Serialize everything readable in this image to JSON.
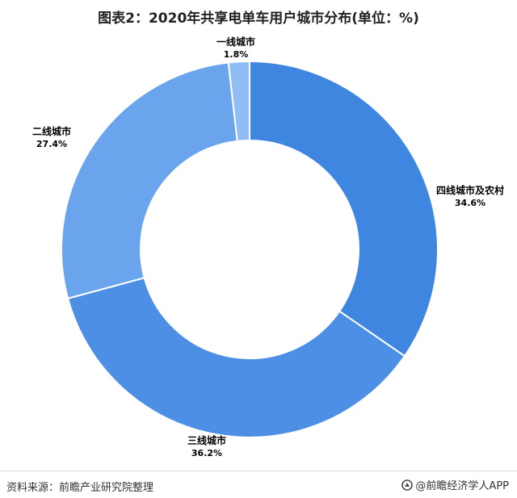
{
  "chart_data": {
    "type": "pie",
    "style": "donut",
    "title": "图表2：2020年共享电单车用户城市分布(单位：%)",
    "categories": [
      "四线城市及农村",
      "三线城市",
      "二线城市",
      "一线城市"
    ],
    "values": [
      34.6,
      36.2,
      27.4,
      1.8
    ],
    "value_labels": [
      "34.6%",
      "36.2%",
      "27.4%",
      "1.8%"
    ],
    "colors": [
      "#3f86e0",
      "#4d8fe4",
      "#6aa4ec",
      "#8fbdf4"
    ],
    "separator_color": "#ffffff",
    "label_color": "#000000"
  },
  "footer": {
    "source": "资料来源：前瞻产业研究院整理",
    "brand": "@前瞻经济学人APP"
  },
  "icons": {
    "brand": "brand-logo-icon"
  }
}
